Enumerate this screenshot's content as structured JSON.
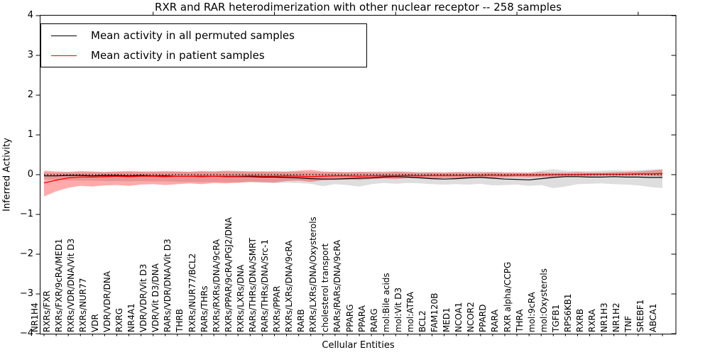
{
  "figure": {
    "title": "RXR and RAR heterodimerization with other nuclear receptor -- 258 samples",
    "xlabel": "Cellular Entities",
    "ylabel": "Inferred Activity"
  },
  "legend": {
    "entries": [
      {
        "label": "Mean activity in all permuted samples",
        "color": "#000000"
      },
      {
        "label": "Mean activity in patient samples",
        "color": "#ff0000"
      }
    ],
    "position": "upper left"
  },
  "chart_data": {
    "type": "line",
    "title": "RXR and RAR heterodimerization with other nuclear receptor -- 258 samples",
    "xlabel": "Cellular Entities",
    "ylabel": "Inferred Activity",
    "ylim": [
      -4,
      4
    ],
    "yticks": [
      -4,
      -3,
      -2,
      -1,
      0,
      1,
      2,
      3,
      4
    ],
    "grid": false,
    "legend_position": "upper left",
    "reference_line": {
      "y": 0,
      "style": "dotted",
      "color": "#000000"
    },
    "categories": [
      "NR1H4",
      "RXRs/FXR",
      "RXRs/FXR/9cRA/MED1",
      "RXRs/VDR/DNA/Vit D3",
      "RXRs/NUR77",
      "VDR",
      "VDR/VDR/DNA",
      "RXRG",
      "NR4A1",
      "VDR/VDR/Vit D3",
      "VDR/Vit D3/DNA",
      "RARs/VDR/DNA/Vit D3",
      "THRB",
      "RXRs/NUR77/BCL2",
      "RARs/THRs",
      "RXRs/RXRs/DNA/9cRA",
      "RXRs/PPAR/9cRA/PGJ2/DNA",
      "RXRs/LXRs/DNA",
      "RARs/THRs/DNA/SMRT",
      "RARs/THRs/DNA/Src-1",
      "RXRs/PPAR",
      "RXRs/LXRs/DNA/9cRA",
      "RARB",
      "RXRs/LXRs/DNA/Oxysterols",
      "cholesterol transport",
      "RARs/RARs/DNA/9cRA",
      "PPARG",
      "PPARA",
      "RARG",
      "mol:Bile acids",
      "mol:Vit D3",
      "mol:ATRA",
      "BCL2",
      "FAM120B",
      "MED1",
      "NCOA1",
      "NCOR2",
      "PPARD",
      "RARA",
      "RXR alpha/CCPG",
      "THRA",
      "mol:9cRA",
      "mol:Oxysterols",
      "TGFB1",
      "RPS6KB1",
      "RXRB",
      "RXRA",
      "NR1H3",
      "NR1H2",
      "TNF",
      "SREBF1",
      "ABCA1"
    ],
    "series": [
      {
        "name": "Mean activity in all permuted samples",
        "color": "#000000",
        "band_color": "rgba(0,0,0,0.13)",
        "values": [
          -0.03,
          -0.03,
          -0.02,
          -0.02,
          -0.03,
          -0.02,
          -0.02,
          -0.03,
          -0.02,
          -0.03,
          -0.03,
          -0.04,
          -0.04,
          -0.04,
          -0.04,
          -0.05,
          -0.05,
          -0.05,
          -0.06,
          -0.06,
          -0.07,
          -0.08,
          -0.1,
          -0.11,
          -0.11,
          -0.1,
          -0.09,
          -0.08,
          -0.06,
          -0.05,
          -0.06,
          -0.08,
          -0.1,
          -0.11,
          -0.1,
          -0.08,
          -0.07,
          -0.09,
          -0.11,
          -0.12,
          -0.13,
          -0.1,
          -0.07,
          -0.05,
          -0.05,
          -0.06,
          -0.06,
          -0.05,
          -0.06,
          -0.06,
          -0.07,
          -0.07
        ],
        "band_upper": [
          0.05,
          0.05,
          0.06,
          0.06,
          0.06,
          0.06,
          0.07,
          0.07,
          0.07,
          0.07,
          0.07,
          0.08,
          0.08,
          0.08,
          0.08,
          0.08,
          0.08,
          0.08,
          0.08,
          0.08,
          0.07,
          0.07,
          0.06,
          0.06,
          0.07,
          0.07,
          0.07,
          0.08,
          0.08,
          0.09,
          0.08,
          0.07,
          0.06,
          0.06,
          0.07,
          0.08,
          0.08,
          0.07,
          0.06,
          0.06,
          0.05,
          0.1,
          0.14,
          0.1,
          0.09,
          0.09,
          0.1,
          0.11,
          0.1,
          0.11,
          0.13,
          0.14
        ],
        "band_lower": [
          -0.12,
          -0.13,
          -0.14,
          -0.15,
          -0.15,
          -0.16,
          -0.16,
          -0.17,
          -0.16,
          -0.17,
          -0.17,
          -0.18,
          -0.18,
          -0.19,
          -0.18,
          -0.19,
          -0.2,
          -0.19,
          -0.2,
          -0.21,
          -0.2,
          -0.21,
          -0.23,
          -0.29,
          -0.24,
          -0.26,
          -0.3,
          -0.24,
          -0.21,
          -0.23,
          -0.21,
          -0.22,
          -0.24,
          -0.25,
          -0.24,
          -0.25,
          -0.23,
          -0.27,
          -0.26,
          -0.25,
          -0.28,
          -0.26,
          -0.34,
          -0.3,
          -0.24,
          -0.23,
          -0.22,
          -0.24,
          -0.25,
          -0.27,
          -0.31,
          -0.34
        ]
      },
      {
        "name": "Mean activity in patient samples",
        "color": "#ff0000",
        "band_color": "rgba(255,0,0,0.33)",
        "values": [
          -0.21,
          -0.14,
          -0.08,
          -0.06,
          -0.06,
          -0.05,
          -0.04,
          -0.05,
          -0.04,
          -0.04,
          -0.05,
          -0.04,
          -0.04,
          -0.05,
          -0.04,
          -0.04,
          -0.04,
          -0.03,
          -0.04,
          -0.04,
          -0.03,
          -0.04,
          -0.05,
          -0.04,
          -0.03,
          -0.03,
          -0.04,
          -0.03,
          -0.03,
          -0.03,
          -0.02,
          -0.03,
          -0.02,
          -0.02,
          -0.02,
          -0.02,
          -0.02,
          -0.01,
          -0.02,
          -0.01,
          -0.01,
          -0.01,
          0.0,
          0.0,
          0.0,
          0.01,
          0.01,
          0.01,
          0.01,
          0.02,
          0.02,
          0.03
        ],
        "band_upper": [
          0.1,
          0.08,
          0.07,
          0.09,
          0.08,
          0.07,
          0.08,
          0.09,
          0.08,
          0.08,
          0.09,
          0.08,
          0.07,
          0.09,
          0.08,
          0.1,
          0.09,
          0.08,
          0.08,
          0.08,
          0.08,
          0.1,
          0.12,
          0.08,
          0.07,
          0.06,
          0.07,
          0.06,
          0.06,
          0.07,
          0.06,
          0.05,
          0.06,
          0.05,
          0.06,
          0.05,
          0.05,
          0.06,
          0.05,
          0.05,
          0.05,
          0.06,
          0.05,
          0.05,
          0.06,
          0.05,
          0.05,
          0.06,
          0.07,
          0.08,
          0.1,
          0.13
        ],
        "band_lower": [
          -0.55,
          -0.42,
          -0.33,
          -0.28,
          -0.3,
          -0.27,
          -0.26,
          -0.28,
          -0.25,
          -0.24,
          -0.26,
          -0.24,
          -0.22,
          -0.24,
          -0.21,
          -0.22,
          -0.2,
          -0.18,
          -0.19,
          -0.2,
          -0.16,
          -0.15,
          -0.18,
          -0.14,
          -0.13,
          -0.12,
          -0.13,
          -0.11,
          -0.1,
          -0.11,
          -0.09,
          -0.09,
          -0.1,
          -0.08,
          -0.09,
          -0.08,
          -0.07,
          -0.08,
          -0.07,
          -0.06,
          -0.07,
          -0.06,
          -0.06,
          -0.05,
          -0.04,
          -0.04,
          -0.03,
          -0.03,
          -0.03,
          -0.02,
          -0.03,
          -0.04
        ]
      }
    ]
  }
}
